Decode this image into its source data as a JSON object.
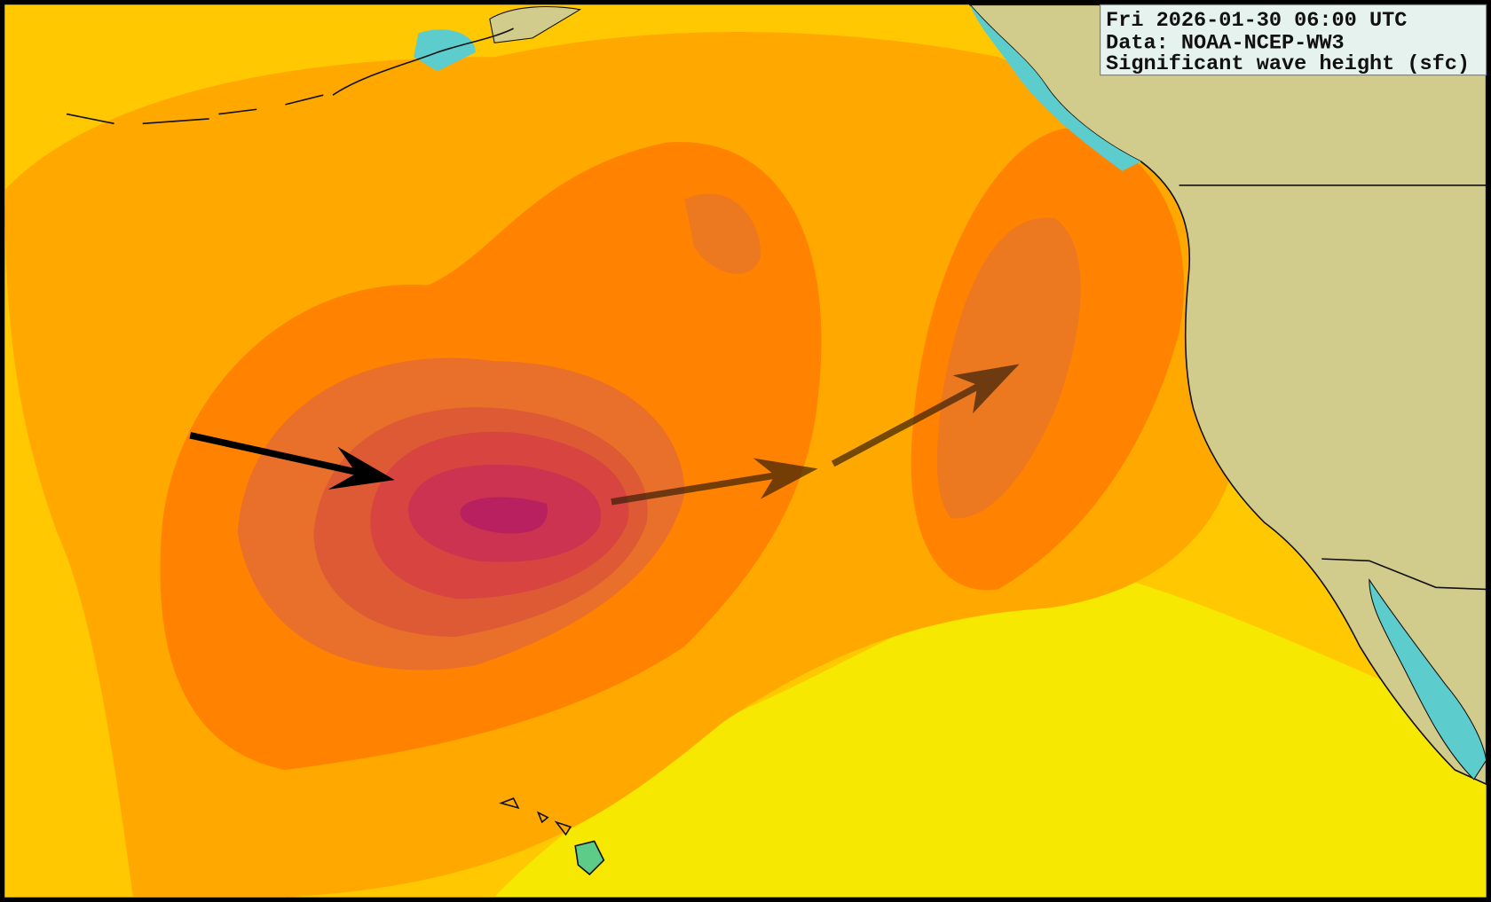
{
  "header": {
    "lines": [
      "Fri 2026-01-30 06:00 UTC",
      "Data: NOAA-NCEP-WW3",
      "Significant wave height (sfc)"
    ]
  }
}
